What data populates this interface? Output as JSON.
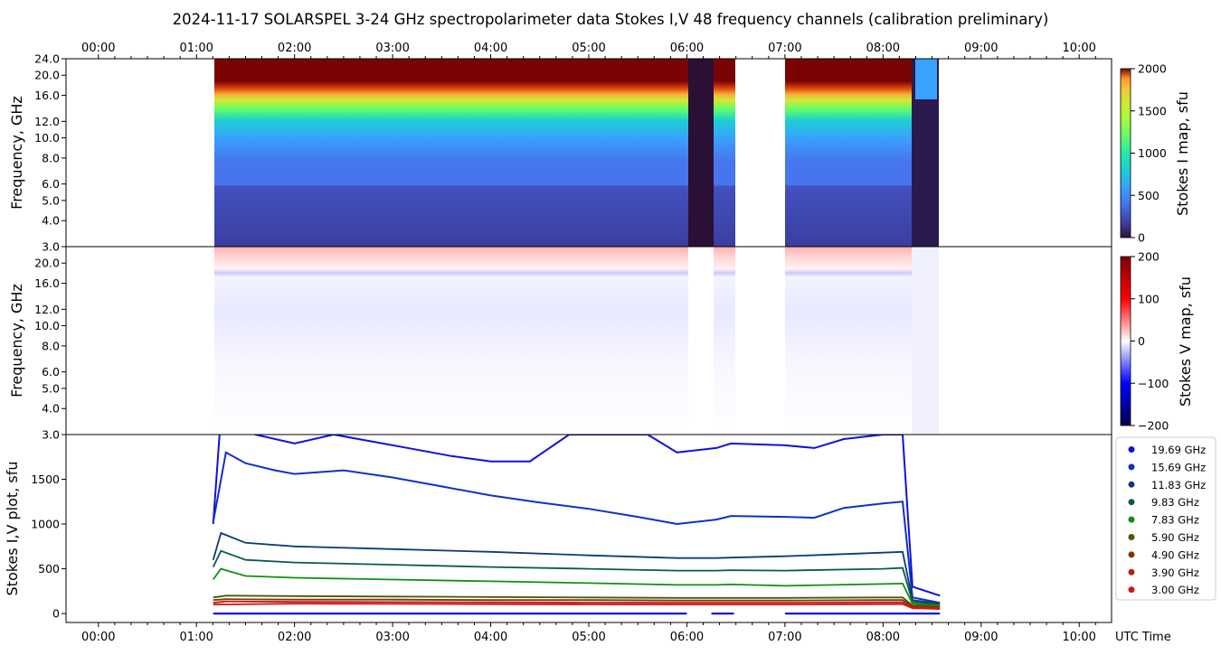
{
  "title": "2024-11-17  SOLARSPEL  3-24 GHz spectropolarimeter data   Stokes I,V   48 frequency channels   (calibration preliminary)",
  "xaxis": {
    "label": "UTC Time",
    "ticks": [
      "00:00",
      "01:00",
      "02:00",
      "03:00",
      "04:00",
      "05:00",
      "06:00",
      "07:00",
      "08:00",
      "09:00",
      "10:00"
    ]
  },
  "panels": {
    "stokes_i": {
      "ylabel": "Frequency, GHz",
      "yticks": [
        "3.0",
        "4.0",
        "5.0",
        "6.0",
        "8.0",
        "10.0",
        "12.0",
        "16.0",
        "20.0",
        "24.0"
      ],
      "colorbar_label": "Stokes I map, sfu",
      "colorbar_ticks": [
        "0",
        "500",
        "1000",
        "1500",
        "2000"
      ],
      "colorbar_range": [
        0,
        2000
      ],
      "colormap": "turbo"
    },
    "stokes_v": {
      "ylabel": "Frequency, GHz",
      "yticks": [
        "3.0",
        "4.0",
        "5.0",
        "6.0",
        "8.0",
        "10.0",
        "12.0",
        "16.0",
        "20.0"
      ],
      "colorbar_label": "Stokes V map, sfu",
      "colorbar_ticks": [
        "200",
        "100",
        "0",
        "−100",
        "−200"
      ],
      "colorbar_range": [
        -200,
        200
      ],
      "colormap": "seismic"
    },
    "plot": {
      "ylabel": "Stokes I,V plot, sfu",
      "yticks": [
        "0",
        "500",
        "1000",
        "1500"
      ]
    }
  },
  "chart_data": {
    "type": "line",
    "x_unit": "UTC hour",
    "xlim": [
      -0.33,
      10.33
    ],
    "ylim": [
      -100,
      2000
    ],
    "observation_segments": [
      [
        1.17,
        6.0
      ],
      [
        6.25,
        6.48
      ],
      [
        7.0,
        8.58
      ]
    ],
    "series": [
      {
        "name": "19.69 GHz",
        "color": "#1010e0",
        "x": [
          1.17,
          1.3,
          1.6,
          2.0,
          2.4,
          2.8,
          3.2,
          3.6,
          4.0,
          4.4,
          4.8,
          5.2,
          5.6,
          5.9,
          6.3,
          6.45,
          7.0,
          7.3,
          7.6,
          8.0,
          8.2,
          8.3,
          8.58
        ],
        "y": [
          1000,
          3000,
          2000,
          1900,
          2000,
          1920,
          1840,
          1760,
          1700,
          1700,
          2000,
          2000,
          2000,
          1800,
          1850,
          1900,
          1880,
          1850,
          1950,
          2000,
          2000,
          300,
          200
        ]
      },
      {
        "name": "15.69 GHz",
        "color": "#1030c8",
        "x": [
          1.17,
          1.3,
          1.5,
          1.8,
          2.0,
          2.5,
          3.0,
          3.5,
          4.0,
          4.5,
          5.0,
          5.5,
          5.9,
          6.3,
          6.45,
          7.0,
          7.3,
          7.6,
          8.0,
          8.2,
          8.3,
          8.58
        ],
        "y": [
          1020,
          1800,
          1680,
          1600,
          1560,
          1600,
          1520,
          1420,
          1320,
          1240,
          1170,
          1080,
          1000,
          1050,
          1090,
          1080,
          1070,
          1180,
          1230,
          1250,
          180,
          120
        ]
      },
      {
        "name": "11.83 GHz",
        "color": "#0a3c78",
        "x": [
          1.17,
          1.25,
          1.5,
          2.0,
          3.0,
          4.0,
          5.0,
          5.9,
          6.3,
          6.45,
          7.0,
          8.0,
          8.2,
          8.3,
          8.58
        ],
        "y": [
          600,
          900,
          790,
          750,
          720,
          690,
          650,
          620,
          620,
          625,
          640,
          680,
          690,
          150,
          110
        ]
      },
      {
        "name": "9.83 GHz",
        "color": "#0a5a50",
        "x": [
          1.17,
          1.25,
          1.5,
          2.0,
          3.0,
          4.0,
          5.0,
          5.9,
          6.3,
          6.45,
          7.0,
          8.0,
          8.2,
          8.3,
          8.58
        ],
        "y": [
          520,
          700,
          600,
          570,
          545,
          520,
          500,
          480,
          480,
          485,
          480,
          500,
          510,
          130,
          100
        ]
      },
      {
        "name": "7.83 GHz",
        "color": "#109010",
        "x": [
          1.17,
          1.25,
          1.5,
          2.0,
          3.0,
          4.0,
          5.0,
          5.9,
          6.3,
          6.45,
          7.0,
          8.0,
          8.2,
          8.3,
          8.58
        ],
        "y": [
          380,
          500,
          420,
          400,
          380,
          360,
          340,
          320,
          320,
          325,
          310,
          330,
          335,
          110,
          90
        ]
      },
      {
        "name": "5.90 GHz",
        "color": "#4a5a08",
        "x": [
          1.17,
          1.3,
          2.0,
          3.0,
          4.0,
          5.0,
          5.9,
          6.3,
          6.45,
          7.0,
          8.0,
          8.2,
          8.3,
          8.58
        ],
        "y": [
          180,
          200,
          195,
          190,
          185,
          180,
          175,
          175,
          175,
          175,
          180,
          180,
          90,
          80
        ]
      },
      {
        "name": "4.90 GHz",
        "color": "#7a3a08",
        "x": [
          1.17,
          1.3,
          2.0,
          3.0,
          4.0,
          5.0,
          5.9,
          6.3,
          6.45,
          7.0,
          8.0,
          8.2,
          8.3,
          8.58
        ],
        "y": [
          150,
          160,
          155,
          155,
          150,
          150,
          145,
          145,
          145,
          145,
          150,
          150,
          80,
          70
        ]
      },
      {
        "name": "3.90 GHz",
        "color": "#b82010",
        "x": [
          1.17,
          1.3,
          2.0,
          3.0,
          4.0,
          5.0,
          5.9,
          6.3,
          6.45,
          7.0,
          8.0,
          8.2,
          8.3,
          8.58
        ],
        "y": [
          120,
          135,
          130,
          128,
          125,
          122,
          120,
          120,
          120,
          120,
          125,
          125,
          70,
          60
        ]
      },
      {
        "name": "3.00 GHz",
        "color": "#e01010",
        "x": [
          1.17,
          2.0,
          3.0,
          4.0,
          5.0,
          5.9,
          6.3,
          6.45,
          7.0,
          8.0,
          8.2,
          8.3,
          8.58
        ],
        "y": [
          100,
          110,
          108,
          105,
          102,
          100,
          100,
          100,
          100,
          105,
          105,
          60,
          50
        ]
      }
    ],
    "stokes_v_series": {
      "color": "#0a14d8",
      "approx_level": 0
    },
    "legend_position": "right"
  }
}
